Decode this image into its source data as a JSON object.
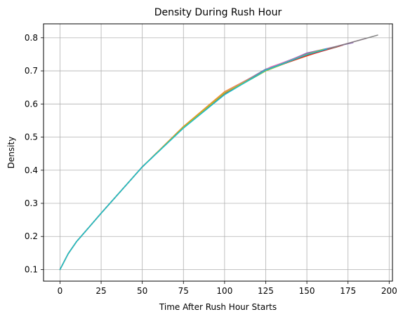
{
  "chart_data": {
    "type": "line",
    "title": "Density During Rush Hour",
    "xlabel": "Time After Rush Hour Starts",
    "ylabel": "Density",
    "xlim": [
      -10,
      202
    ],
    "ylim": [
      0.065,
      0.842
    ],
    "x_ticks": [
      {
        "value": 0,
        "label": "0"
      },
      {
        "value": 25,
        "label": "25"
      },
      {
        "value": 50,
        "label": "50"
      },
      {
        "value": 75,
        "label": "75"
      },
      {
        "value": 100,
        "label": "100"
      },
      {
        "value": 125,
        "label": "125"
      },
      {
        "value": 150,
        "label": "150"
      },
      {
        "value": 175,
        "label": "175"
      },
      {
        "value": 200,
        "label": "200"
      }
    ],
    "y_ticks": [
      {
        "value": 0.1,
        "label": "0.1"
      },
      {
        "value": 0.2,
        "label": "0.2"
      },
      {
        "value": 0.3,
        "label": "0.3"
      },
      {
        "value": 0.4,
        "label": "0.4"
      },
      {
        "value": 0.5,
        "label": "0.5"
      },
      {
        "value": 0.6,
        "label": "0.6"
      },
      {
        "value": 0.7,
        "label": "0.7"
      },
      {
        "value": 0.8,
        "label": "0.8"
      }
    ],
    "grid": true,
    "legend": "none",
    "series": [
      {
        "color": "#1f77b4",
        "x": [
          0,
          5,
          10,
          25,
          50,
          75,
          100,
          125,
          150,
          158
        ],
        "y": [
          0.1,
          0.148,
          0.184,
          0.27,
          0.41,
          0.528,
          0.634,
          0.705,
          0.752,
          0.762
        ]
      },
      {
        "color": "#ff7f0e",
        "x": [
          0,
          5,
          10,
          25,
          50,
          75,
          100,
          125,
          150,
          165
        ],
        "y": [
          0.1,
          0.148,
          0.184,
          0.27,
          0.41,
          0.532,
          0.637,
          0.703,
          0.745,
          0.77
        ]
      },
      {
        "color": "#2ca02c",
        "x": [
          0,
          5,
          10,
          25,
          50,
          75,
          100,
          125,
          150,
          170
        ],
        "y": [
          0.1,
          0.148,
          0.184,
          0.27,
          0.41,
          0.528,
          0.63,
          0.7,
          0.748,
          0.775
        ]
      },
      {
        "color": "#d62728",
        "x": [
          0,
          5,
          10,
          25,
          50,
          75,
          100,
          125,
          150,
          172
        ],
        "y": [
          0.1,
          0.148,
          0.184,
          0.27,
          0.41,
          0.53,
          0.632,
          0.702,
          0.746,
          0.778
        ]
      },
      {
        "color": "#9467bd",
        "x": [
          0,
          5,
          10,
          25,
          50,
          75,
          100,
          120,
          150,
          178
        ],
        "y": [
          0.1,
          0.148,
          0.184,
          0.27,
          0.41,
          0.53,
          0.633,
          0.69,
          0.754,
          0.785
        ]
      },
      {
        "color": "#8c564b",
        "x": [
          0,
          5,
          10,
          25,
          50,
          75,
          100,
          125,
          150,
          168
        ],
        "y": [
          0.1,
          0.148,
          0.184,
          0.27,
          0.41,
          0.53,
          0.634,
          0.702,
          0.75,
          0.772
        ]
      },
      {
        "color": "#e377c2",
        "x": [
          0,
          5,
          10,
          25,
          50,
          75,
          100,
          128,
          150,
          186
        ],
        "y": [
          0.1,
          0.148,
          0.184,
          0.27,
          0.41,
          0.53,
          0.635,
          0.712,
          0.75,
          0.798
        ]
      },
      {
        "color": "#7f7f7f",
        "x": [
          0,
          5,
          10,
          25,
          50,
          75,
          100,
          125,
          150,
          175,
          193
        ],
        "y": [
          0.1,
          0.148,
          0.184,
          0.27,
          0.41,
          0.53,
          0.633,
          0.703,
          0.75,
          0.783,
          0.808
        ]
      },
      {
        "color": "#bcbd22",
        "x": [
          0,
          5,
          10,
          25,
          50,
          75,
          100,
          125,
          150,
          160
        ],
        "y": [
          0.1,
          0.148,
          0.184,
          0.27,
          0.41,
          0.53,
          0.634,
          0.7,
          0.75,
          0.765
        ]
      },
      {
        "color": "#17becf",
        "x": [
          0,
          5,
          10,
          25,
          50,
          75,
          100,
          125,
          150,
          162
        ],
        "y": [
          0.1,
          0.148,
          0.184,
          0.27,
          0.41,
          0.527,
          0.628,
          0.702,
          0.749,
          0.766
        ]
      }
    ]
  }
}
